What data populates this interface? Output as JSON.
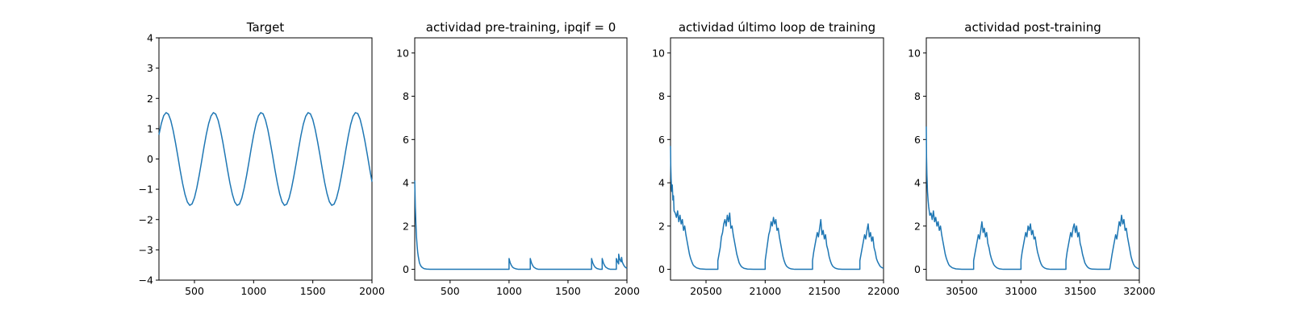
{
  "chart_data": [
    {
      "type": "line",
      "title": "Target",
      "xlabel": "",
      "ylabel": "",
      "xlim": [
        200,
        2000
      ],
      "ylim": [
        -4,
        4
      ],
      "xticks": [
        500,
        1000,
        1500,
        2000
      ],
      "yticks": [
        -4,
        -3,
        -2,
        -1,
        0,
        1,
        2,
        3,
        4
      ],
      "grid": false,
      "series": [
        {
          "color": "#1f77b4",
          "x": [
            200,
            220,
            240,
            260,
            280,
            300,
            320,
            340,
            360,
            380,
            400,
            420,
            440,
            460,
            480,
            500,
            520,
            540,
            560,
            580,
            600,
            620,
            640,
            660,
            680,
            700,
            720,
            740,
            760,
            780,
            800,
            820,
            840,
            860,
            880,
            900,
            920,
            940,
            960,
            980,
            1000,
            1020,
            1040,
            1060,
            1080,
            1100,
            1120,
            1140,
            1160,
            1180,
            1200,
            1220,
            1240,
            1260,
            1280,
            1300,
            1320,
            1340,
            1360,
            1380,
            1400,
            1420,
            1440,
            1460,
            1480,
            1500,
            1520,
            1540,
            1560,
            1580,
            1600,
            1620,
            1640,
            1660,
            1680,
            1700,
            1720,
            1740,
            1760,
            1780,
            1800,
            1820,
            1840,
            1860,
            1880,
            1900,
            1920,
            1940,
            1960,
            1980,
            2000
          ],
          "y": [
            0.8,
            1.17,
            1.43,
            1.53,
            1.48,
            1.27,
            0.94,
            0.53,
            0.08,
            -0.39,
            -0.81,
            -1.17,
            -1.42,
            -1.53,
            -1.48,
            -1.28,
            -0.95,
            -0.54,
            -0.09,
            0.38,
            0.81,
            1.17,
            1.42,
            1.53,
            1.48,
            1.28,
            0.95,
            0.55,
            0.1,
            -0.37,
            -0.8,
            -1.16,
            -1.42,
            -1.53,
            -1.49,
            -1.29,
            -0.96,
            -0.56,
            -0.11,
            0.36,
            0.79,
            1.16,
            1.42,
            1.53,
            1.49,
            1.29,
            0.97,
            0.56,
            0.12,
            -0.35,
            -0.78,
            -1.15,
            -1.41,
            -1.53,
            -1.49,
            -1.29,
            -0.97,
            -0.57,
            -0.13,
            0.34,
            0.78,
            1.15,
            1.41,
            1.53,
            1.49,
            1.3,
            0.98,
            0.58,
            0.14,
            -0.33,
            -0.77,
            -1.14,
            -1.41,
            -1.53,
            -1.49,
            -1.3,
            -0.99,
            -0.59,
            -0.15,
            0.32,
            0.76,
            1.14,
            1.41,
            1.53,
            1.5,
            1.31,
            0.99,
            0.6,
            0.16,
            -0.31,
            -0.75
          ]
        }
      ]
    },
    {
      "type": "line",
      "title": "actividad pre-training, ipqif = 0",
      "xlabel": "",
      "ylabel": "",
      "xlim": [
        200,
        2000
      ],
      "ylim": [
        -0.5,
        10.7
      ],
      "xticks": [
        500,
        1000,
        1500,
        2000
      ],
      "yticks": [
        0,
        2,
        4,
        6,
        8,
        10
      ],
      "grid": false,
      "series": [
        {
          "color": "#1f77b4",
          "x": [
            200,
            205,
            210,
            215,
            220,
            225,
            230,
            240,
            250,
            260,
            270,
            280,
            300,
            330,
            400,
            500,
            700,
            900,
            1000,
            1000,
            1005,
            1010,
            1020,
            1030,
            1040,
            1060,
            1080,
            1180,
            1180,
            1185,
            1190,
            1200,
            1210,
            1230,
            1250,
            1700,
            1700,
            1705,
            1710,
            1720,
            1730,
            1745,
            1770,
            1790,
            1790,
            1795,
            1800,
            1810,
            1820,
            1840,
            1860,
            1900,
            1910,
            1910,
            1915,
            1920,
            1925,
            1930,
            1930,
            1935,
            1940,
            1950,
            1955,
            1960,
            1970,
            1980,
            1990,
            2000
          ],
          "y": [
            4.1,
            2.9,
            2.1,
            1.5,
            1.1,
            0.8,
            0.6,
            0.3,
            0.17,
            0.1,
            0.06,
            0.03,
            0.01,
            0.0,
            0.0,
            0.0,
            0.0,
            0.0,
            0.0,
            0.5,
            0.4,
            0.3,
            0.18,
            0.1,
            0.06,
            0.02,
            0.0,
            0.0,
            0.5,
            0.4,
            0.3,
            0.18,
            0.1,
            0.03,
            0.0,
            0.0,
            0.5,
            0.4,
            0.3,
            0.18,
            0.1,
            0.04,
            0.0,
            0.0,
            0.5,
            0.4,
            0.3,
            0.18,
            0.1,
            0.03,
            0.0,
            0.0,
            0.0,
            0.5,
            0.45,
            0.35,
            0.3,
            0.25,
            0.7,
            0.55,
            0.45,
            0.35,
            0.55,
            0.35,
            0.22,
            0.13,
            0.08,
            0.05
          ]
        }
      ]
    },
    {
      "type": "line",
      "title": "actividad último loop de training",
      "xlabel": "",
      "ylabel": "",
      "xlim": [
        20200,
        22000
      ],
      "ylim": [
        -0.5,
        10.7
      ],
      "xticks": [
        20500,
        21000,
        21500,
        22000
      ],
      "yticks": [
        0,
        2,
        4,
        6,
        8,
        10
      ],
      "grid": false,
      "series": [
        {
          "color": "#1f77b4",
          "x": [
            20200,
            20202,
            20205,
            20210,
            20215,
            20220,
            20225,
            20230,
            20240,
            20250,
            20260,
            20270,
            20280,
            20290,
            20300,
            20310,
            20320,
            20330,
            20340,
            20350,
            20360,
            20370,
            20380,
            20390,
            20400,
            20420,
            20450,
            20500,
            20550,
            20600,
            20600,
            20610,
            20620,
            20630,
            20640,
            20650,
            20660,
            20670,
            20680,
            20690,
            20700,
            20710,
            20720,
            20730,
            20740,
            20750,
            20760,
            20770,
            20780,
            20790,
            20800,
            20820,
            20850,
            20900,
            20950,
            21000,
            21000,
            21010,
            21020,
            21030,
            21040,
            21050,
            21060,
            21070,
            21080,
            21090,
            21100,
            21110,
            21120,
            21130,
            21140,
            21150,
            21160,
            21170,
            21180,
            21190,
            21200,
            21220,
            21250,
            21300,
            21350,
            21400,
            21400,
            21410,
            21420,
            21430,
            21440,
            21450,
            21460,
            21470,
            21480,
            21490,
            21500,
            21510,
            21520,
            21530,
            21540,
            21550,
            21560,
            21570,
            21580,
            21590,
            21600,
            21620,
            21650,
            21700,
            21750,
            21800,
            21800,
            21810,
            21820,
            21830,
            21840,
            21850,
            21860,
            21870,
            21880,
            21890,
            21900,
            21910,
            21920,
            21930,
            21940,
            21950,
            21960,
            21970,
            21980,
            21990,
            22000
          ],
          "y": [
            5.7,
            4.8,
            4.2,
            3.6,
            3.9,
            3.2,
            3.4,
            2.7,
            2.6,
            2.4,
            2.7,
            2.2,
            2.5,
            2.1,
            2.3,
            1.8,
            2.0,
            1.6,
            1.3,
            1.0,
            0.7,
            0.5,
            0.35,
            0.22,
            0.15,
            0.07,
            0.02,
            0.0,
            0.0,
            0.0,
            0.4,
            0.7,
            1.0,
            1.5,
            1.7,
            2.1,
            2.3,
            2.0,
            2.5,
            2.2,
            2.6,
            1.9,
            2.0,
            1.6,
            1.3,
            1.0,
            0.7,
            0.5,
            0.3,
            0.2,
            0.12,
            0.05,
            0.01,
            0.0,
            0.0,
            0.0,
            0.4,
            0.8,
            1.2,
            1.6,
            1.8,
            2.2,
            2.0,
            2.4,
            2.1,
            2.3,
            1.8,
            1.9,
            1.5,
            1.2,
            0.9,
            0.6,
            0.4,
            0.25,
            0.15,
            0.1,
            0.06,
            0.02,
            0.0,
            0.0,
            0.0,
            0.0,
            0.4,
            0.8,
            1.1,
            1.4,
            1.7,
            1.5,
            1.9,
            2.3,
            1.6,
            1.8,
            1.4,
            1.6,
            1.1,
            0.9,
            0.6,
            0.4,
            0.25,
            0.15,
            0.1,
            0.06,
            0.04,
            0.01,
            0.0,
            0.0,
            0.0,
            0.0,
            0.4,
            0.7,
            1.0,
            1.3,
            1.6,
            1.4,
            1.8,
            2.1,
            1.5,
            1.7,
            1.3,
            1.5,
            1.0,
            0.8,
            0.5,
            0.35,
            0.25,
            0.15,
            0.1,
            0.07,
            0.05
          ]
        }
      ]
    },
    {
      "type": "line",
      "title": "actividad post-training",
      "xlabel": "",
      "ylabel": "",
      "xlim": [
        30200,
        32000
      ],
      "ylim": [
        -0.5,
        10.7
      ],
      "xticks": [
        30500,
        31000,
        31500,
        32000
      ],
      "yticks": [
        0,
        2,
        4,
        6,
        8,
        10
      ],
      "grid": false,
      "series": [
        {
          "color": "#1f77b4",
          "x": [
            30200,
            30202,
            30205,
            30210,
            30215,
            30220,
            30225,
            30230,
            30240,
            30250,
            30260,
            30270,
            30280,
            30290,
            30300,
            30310,
            30320,
            30330,
            30340,
            30350,
            30360,
            30370,
            30380,
            30390,
            30400,
            30420,
            30450,
            30500,
            30550,
            30600,
            30600,
            30610,
            30620,
            30630,
            30640,
            30650,
            30660,
            30670,
            30680,
            30690,
            30700,
            30710,
            30720,
            30730,
            30740,
            30750,
            30760,
            30770,
            30780,
            30790,
            30800,
            30820,
            30850,
            30900,
            30950,
            31000,
            31000,
            31010,
            31020,
            31030,
            31040,
            31050,
            31060,
            31070,
            31080,
            31090,
            31100,
            31110,
            31120,
            31130,
            31140,
            31150,
            31160,
            31170,
            31180,
            31190,
            31200,
            31220,
            31250,
            31300,
            31350,
            31380,
            31380,
            31390,
            31400,
            31410,
            31420,
            31430,
            31440,
            31450,
            31460,
            31470,
            31480,
            31490,
            31500,
            31510,
            31520,
            31530,
            31540,
            31550,
            31560,
            31570,
            31580,
            31600,
            31650,
            31700,
            31750,
            31750,
            31760,
            31770,
            31780,
            31790,
            31800,
            31810,
            31820,
            31830,
            31840,
            31850,
            31860,
            31870,
            31880,
            31890,
            31900,
            31910,
            31920,
            31930,
            31940,
            31950,
            31960,
            31970,
            31980,
            31990,
            32000
          ],
          "y": [
            6.6,
            5.2,
            4.4,
            3.6,
            3.2,
            2.9,
            2.7,
            2.5,
            2.6,
            2.3,
            2.7,
            2.2,
            2.4,
            2.0,
            2.2,
            1.8,
            2.0,
            1.6,
            1.3,
            1.0,
            0.7,
            0.5,
            0.35,
            0.22,
            0.15,
            0.07,
            0.02,
            0.0,
            0.0,
            0.0,
            0.4,
            0.7,
            1.0,
            1.3,
            1.6,
            1.4,
            1.8,
            2.2,
            1.7,
            1.9,
            1.5,
            1.7,
            1.2,
            1.0,
            0.7,
            0.5,
            0.35,
            0.22,
            0.15,
            0.1,
            0.06,
            0.02,
            0.0,
            0.0,
            0.0,
            0.0,
            0.4,
            0.8,
            1.1,
            1.4,
            1.7,
            1.5,
            2.0,
            1.8,
            2.1,
            1.6,
            1.8,
            1.4,
            1.5,
            1.1,
            0.8,
            0.6,
            0.4,
            0.25,
            0.15,
            0.1,
            0.06,
            0.02,
            0.0,
            0.0,
            0.0,
            0.0,
            0.4,
            0.8,
            1.1,
            1.4,
            1.7,
            1.5,
            1.9,
            2.1,
            1.7,
            2.0,
            1.5,
            1.7,
            1.2,
            1.0,
            0.7,
            0.5,
            0.3,
            0.2,
            0.12,
            0.07,
            0.04,
            0.01,
            0.0,
            0.0,
            0.0,
            0.0,
            0.35,
            0.7,
            1.0,
            1.3,
            1.6,
            1.4,
            1.8,
            2.2,
            2.0,
            2.5,
            2.1,
            2.3,
            1.8,
            1.9,
            1.5,
            1.2,
            0.9,
            0.6,
            0.4,
            0.25,
            0.15,
            0.1,
            0.06,
            0.04,
            0.02
          ]
        }
      ]
    }
  ]
}
